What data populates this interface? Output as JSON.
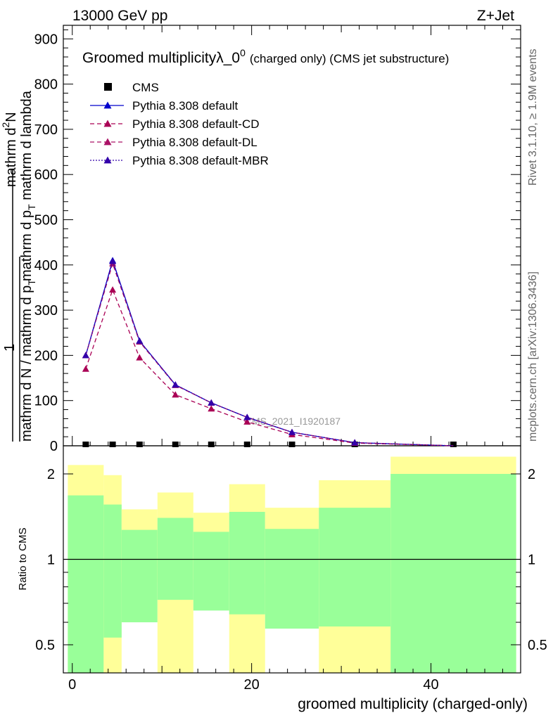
{
  "header": {
    "left": "13000 GeV pp",
    "right": "Z+Jet"
  },
  "side": {
    "top": "Rivet 3.1.10, ≥ 1.9M events",
    "bottom": "mcplots.cern.ch [arXiv:1306.3436]"
  },
  "watermark": "CMS_2021_I1920187",
  "colors": {
    "cms": "#000000",
    "default": "#0000cc",
    "cd": "#aa0055",
    "dl": "#aa1166",
    "mbr": "#3300aa",
    "band_inner": "#99ff99",
    "band_outer": "#ffff99"
  },
  "main": {
    "title_main": "Groomed multiplicityλ_0",
    "title_sup": "0",
    "title_tail": "(charged only) (CMS jet substructure)",
    "ylabel_line1": "mathrm d",
    "ylabel_line1_sup": "2",
    "ylabel_line1_tail": "N",
    "ylabel_line2": "mathrm d p",
    "ylabel_line2_sub": "T",
    "ylabel_line2_tail": " mathrm d lambda",
    "ylabel_pre": "1",
    "ylabel_den1": "mathrm d N / mathrm d p",
    "ylabel_den1_sub": "T",
    "legend": [
      {
        "label": "CMS"
      },
      {
        "label": "Pythia 8.308 default"
      },
      {
        "label": "Pythia 8.308 default-CD"
      },
      {
        "label": "Pythia 8.308 default-DL"
      },
      {
        "label": "Pythia 8.308 default-MBR"
      }
    ]
  },
  "ratio": {
    "ylabel": "Ratio to CMS"
  },
  "xlabel": "groomed multiplicity (charged-only)",
  "chart_data": [
    {
      "type": "line",
      "xlim": [
        -1,
        50
      ],
      "ylim": [
        0,
        930
      ],
      "yticks": [
        0,
        100,
        200,
        300,
        400,
        500,
        600,
        700,
        800,
        900
      ],
      "xticks": [
        0,
        20,
        40
      ],
      "legend_position": "top-left",
      "series": [
        {
          "name": "CMS",
          "style": "marker",
          "x": [
            1.5,
            4.5,
            7.5,
            11.5,
            15.5,
            19.5,
            24.5,
            31.5,
            42.5
          ],
          "y": [
            0,
            0,
            0,
            0,
            0,
            0,
            0,
            0,
            0
          ]
        },
        {
          "name": "Pythia 8.308 default",
          "x": [
            1.5,
            4.5,
            7.5,
            11.5,
            15.5,
            19.5,
            24.5,
            31.5,
            42.5
          ],
          "y": [
            200,
            410,
            232,
            135,
            95,
            63,
            30,
            7,
            0
          ]
        },
        {
          "name": "Pythia 8.308 default-CD",
          "x": [
            1.5,
            4.5,
            7.5,
            11.5,
            15.5,
            19.5,
            24.5,
            31.5,
            42.5
          ],
          "y": [
            170,
            345,
            195,
            113,
            82,
            53,
            25,
            6,
            0
          ]
        },
        {
          "name": "Pythia 8.308 default-DL",
          "x": [
            1.5,
            4.5,
            7.5,
            11.5,
            15.5,
            19.5,
            24.5,
            31.5,
            42.5
          ],
          "y": [
            200,
            403,
            230,
            134,
            95,
            63,
            30,
            7,
            0
          ]
        },
        {
          "name": "Pythia 8.308 default-MBR",
          "x": [
            1.5,
            4.5,
            7.5,
            11.5,
            15.5,
            19.5,
            24.5,
            31.5,
            42.5
          ],
          "y": [
            200,
            408,
            232,
            135,
            95,
            63,
            30,
            7,
            0
          ]
        }
      ]
    },
    {
      "type": "area",
      "ylabel": "Ratio to CMS",
      "xlim": [
        -1,
        50
      ],
      "yticks": [
        0.5,
        1,
        2
      ],
      "reference_line": 1,
      "bins": [
        {
          "lo": -0.5,
          "hi": 3.5,
          "inner": [
            0.33,
            1.68
          ],
          "outer": [
            0.33,
            2.15
          ]
        },
        {
          "lo": 3.5,
          "hi": 5.5,
          "inner": [
            0.53,
            1.56
          ],
          "outer": [
            0.33,
            1.98
          ]
        },
        {
          "lo": 5.5,
          "hi": 9.5,
          "inner": [
            0.6,
            1.27
          ],
          "outer": [
            0.83,
            1.5
          ]
        },
        {
          "lo": 9.5,
          "hi": 13.5,
          "inner": [
            0.72,
            1.4
          ],
          "outer": [
            0.33,
            1.72
          ]
        },
        {
          "lo": 13.5,
          "hi": 17.5,
          "inner": [
            0.66,
            1.25
          ],
          "outer": [
            0.85,
            1.46
          ]
        },
        {
          "lo": 17.5,
          "hi": 21.5,
          "inner": [
            0.64,
            1.47
          ],
          "outer": [
            0.33,
            1.84
          ]
        },
        {
          "lo": 21.5,
          "hi": 27.5,
          "inner": [
            0.57,
            1.28
          ],
          "outer": [
            0.82,
            1.52
          ]
        },
        {
          "lo": 27.5,
          "hi": 35.5,
          "inner": [
            0.58,
            1.52
          ],
          "outer": [
            0.33,
            1.9
          ]
        },
        {
          "lo": 35.5,
          "hi": 49.5,
          "inner": [
            0.33,
            2.0
          ],
          "outer": [
            0.33,
            2.3
          ]
        }
      ]
    }
  ]
}
